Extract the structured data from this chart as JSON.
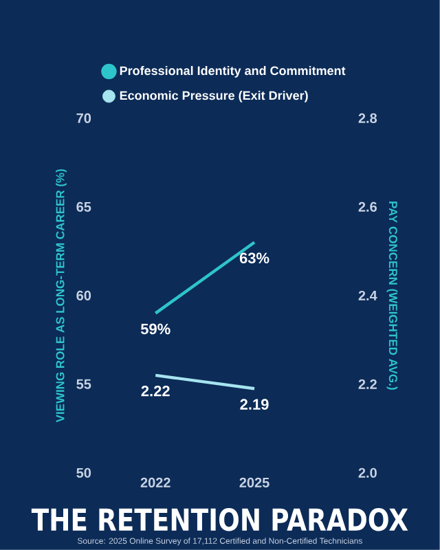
{
  "chart_data": {
    "type": "line",
    "title": "THE RETENTION PARADOX",
    "ylabel": "VIEWING ROLE AS LONG-TERM CAREER (%)",
    "y2label": "PAY CONCERN (WEIGHTED AVG.)",
    "annotations": [
      "Source: 2025 Online Survey of 17,112 Certified and Non-Certified Technicians"
    ],
    "categories": [
      "2022",
      "2025"
    ],
    "series": [
      {
        "name": "Professional Identity and Commitment",
        "color": "#2ec4cb",
        "values": [
          59,
          63
        ],
        "value_labels": [
          "59%",
          "63%"
        ]
      },
      {
        "name": "Economic Pressure (Exit Driver)",
        "color": "#a6e4ef",
        "values": [
          2.22,
          2.19
        ],
        "value_labels": [
          "2.22",
          "2.19"
        ],
        "axis": "y2"
      }
    ],
    "ylim": [
      50,
      70
    ],
    "yticks": [
      50,
      55,
      60,
      65,
      70
    ],
    "y2lim": [
      2.0,
      2.8
    ],
    "y2ticks": [
      {
        "value": 2.0,
        "label": "2.0"
      },
      {
        "value": 2.2,
        "label": "2.2"
      },
      {
        "value": 2.4,
        "label": "2.4"
      },
      {
        "value": 2.6,
        "label": "2.6"
      },
      {
        "value": 2.8,
        "label": "2.8"
      }
    ],
    "legend": "top"
  }
}
